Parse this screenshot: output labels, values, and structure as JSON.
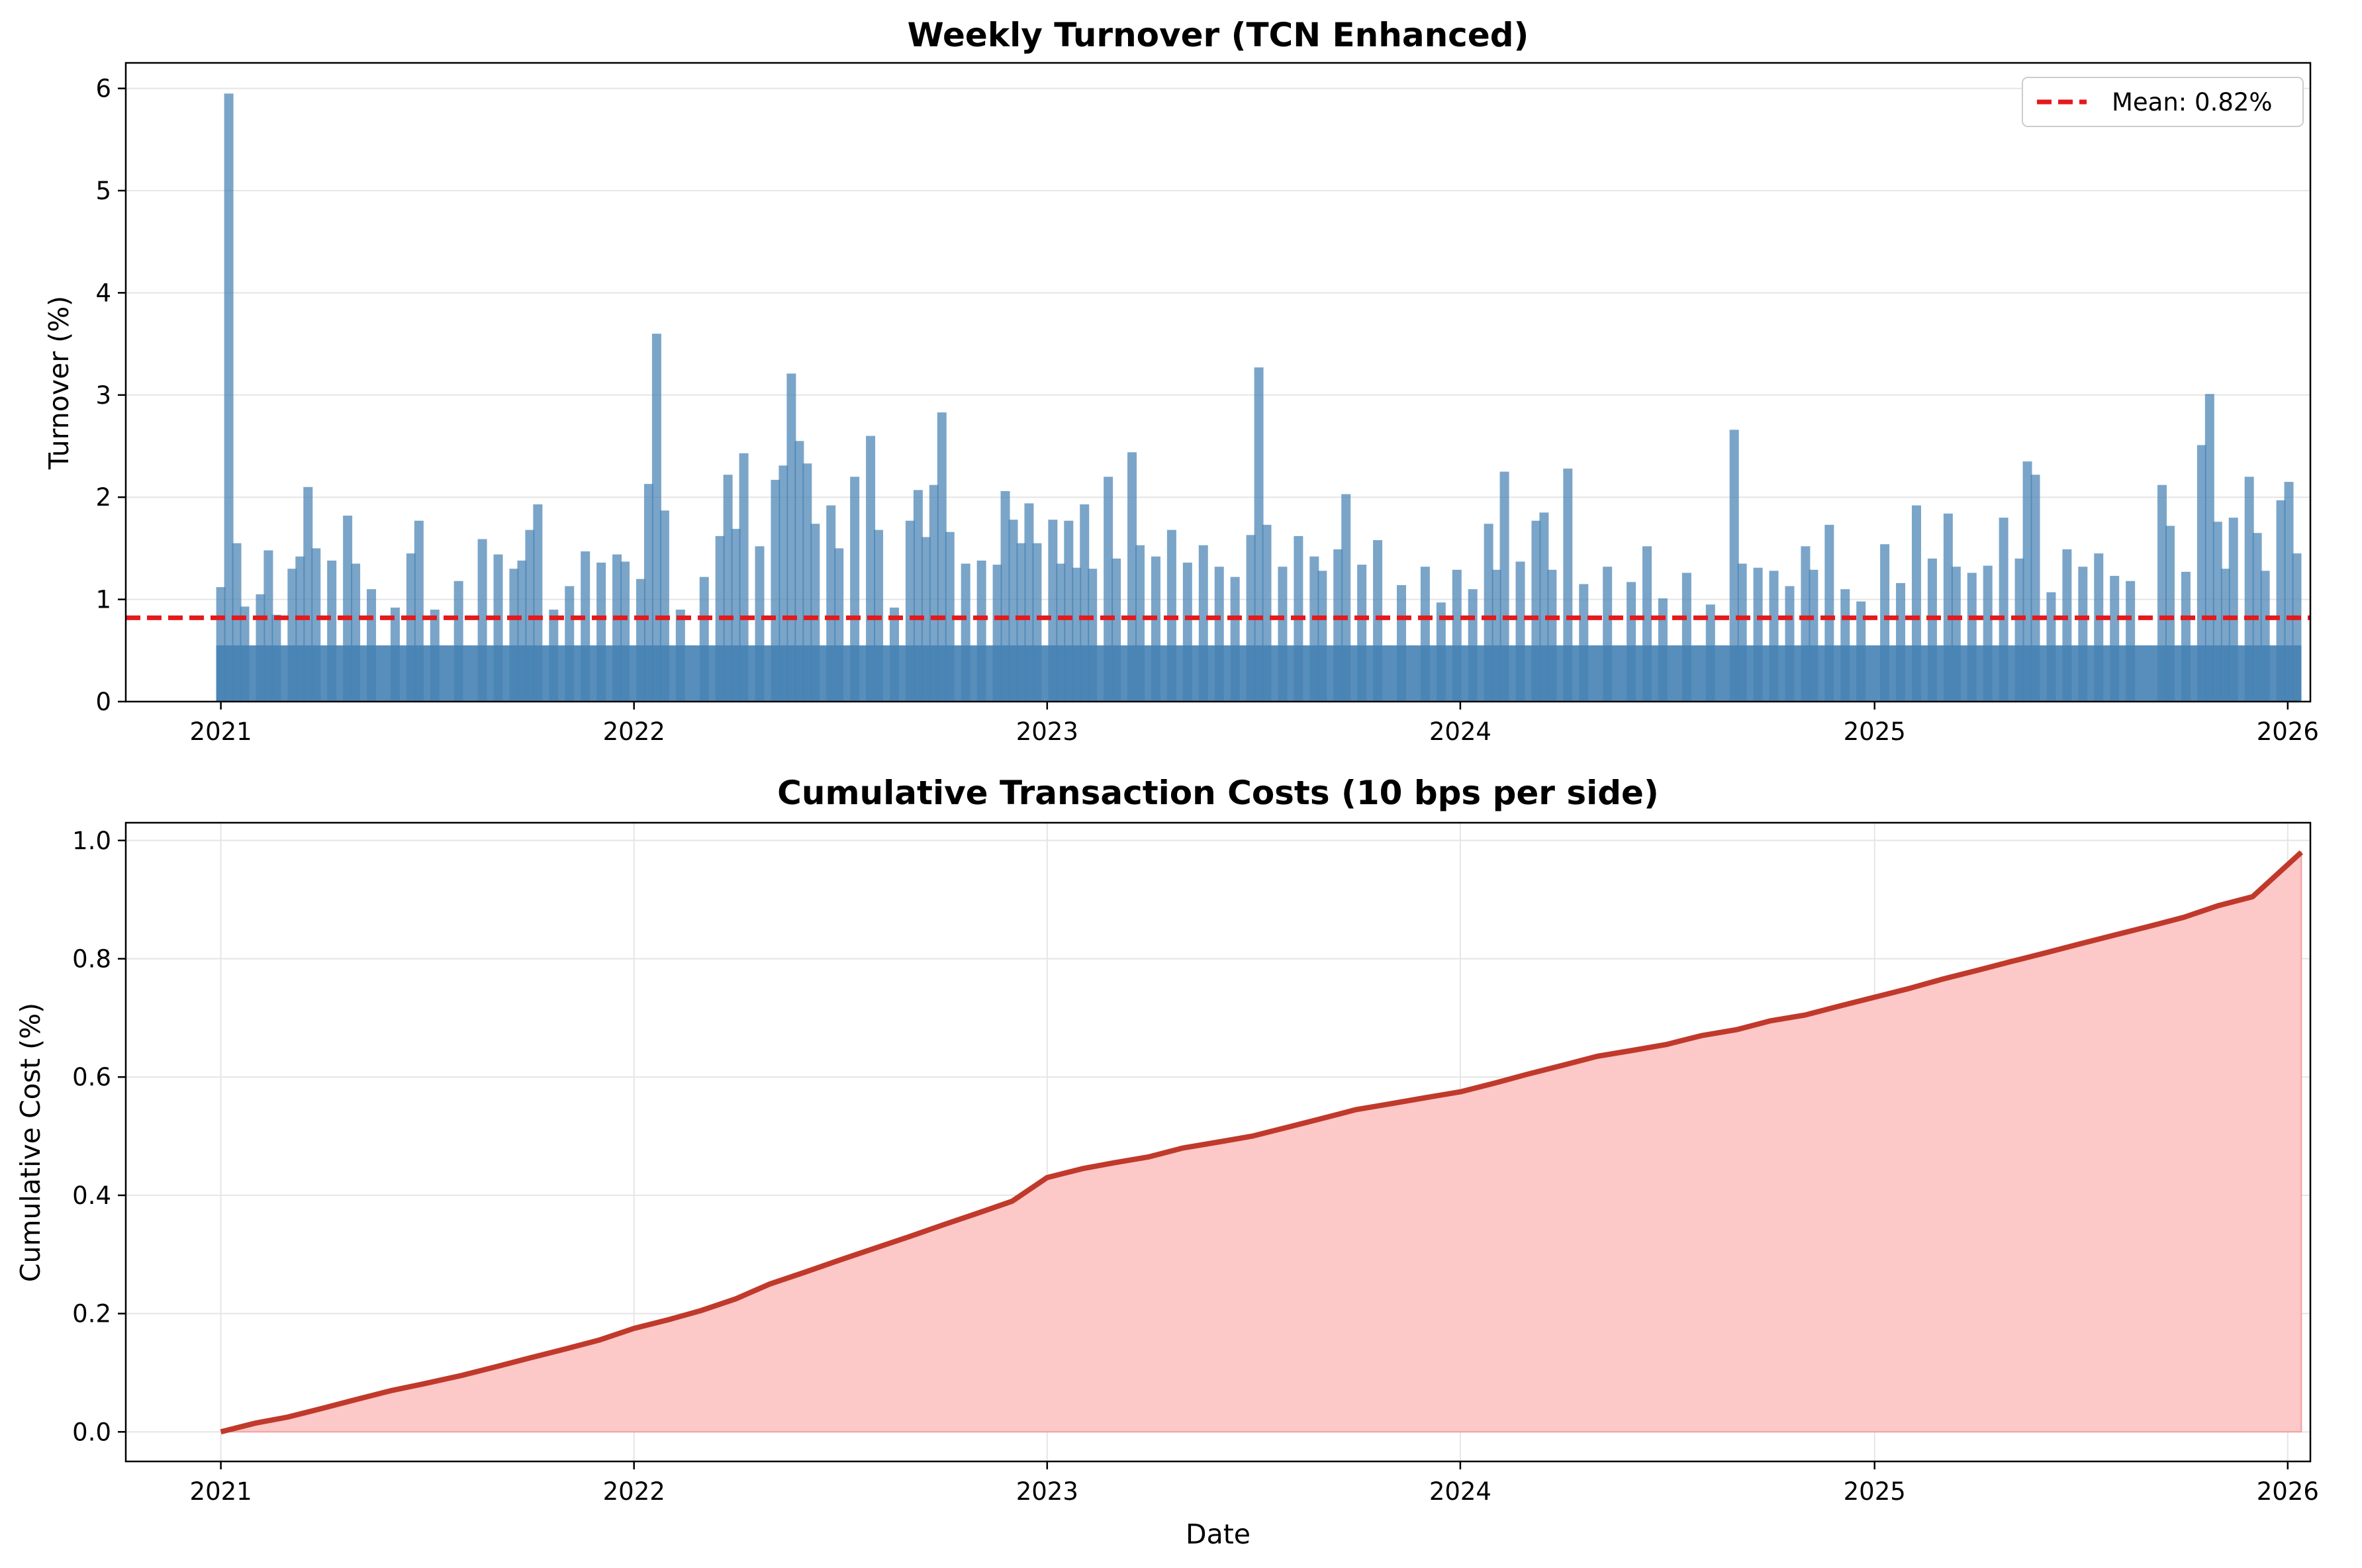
{
  "chart_data": [
    {
      "type": "bar",
      "title": "Weekly Turnover (TCN Enhanced)",
      "xlabel": "",
      "ylabel": "Turnover (%)",
      "xlim": [
        "2020-10-09",
        "2026-01-21"
      ],
      "ylim": [
        0,
        6.25
      ],
      "xticks": [
        "2021",
        "2022",
        "2023",
        "2024",
        "2025",
        "2026"
      ],
      "yticks": [
        "0",
        "1",
        "2",
        "3",
        "4",
        "5",
        "6"
      ],
      "grid": true,
      "legend": {
        "placement": "top-right",
        "entries": [
          "Mean: 0.82%"
        ]
      },
      "colors": {
        "bars": "#4682b4",
        "mean": "#e31a1c"
      },
      "mean": 0.82,
      "series": [
        {
          "values_description": "",
          "points": [
            [
              "2021-01-01",
              1.12
            ],
            [
              "2021-01-08",
              5.95
            ],
            [
              "2021-01-15",
              1.55
            ],
            [
              "2021-01-22",
              0.93
            ],
            [
              "2021-02-05",
              1.05
            ],
            [
              "2021-02-12",
              1.48
            ],
            [
              "2021-02-19",
              0.85
            ],
            [
              "2021-03-05",
              1.3
            ],
            [
              "2021-03-12",
              1.42
            ],
            [
              "2021-03-19",
              2.1
            ],
            [
              "2021-03-26",
              1.5
            ],
            [
              "2021-04-09",
              1.38
            ],
            [
              "2021-04-23",
              1.82
            ],
            [
              "2021-04-30",
              1.35
            ],
            [
              "2021-05-14",
              1.1
            ],
            [
              "2021-06-04",
              0.92
            ],
            [
              "2021-06-18",
              1.45
            ],
            [
              "2021-06-25",
              1.77
            ],
            [
              "2021-07-09",
              0.9
            ],
            [
              "2021-07-30",
              1.18
            ],
            [
              "2021-08-20",
              1.59
            ],
            [
              "2021-09-03",
              1.44
            ],
            [
              "2021-09-17",
              1.3
            ],
            [
              "2021-09-24",
              1.38
            ],
            [
              "2021-10-01",
              1.68
            ],
            [
              "2021-10-08",
              1.93
            ],
            [
              "2021-10-22",
              0.9
            ],
            [
              "2021-11-05",
              1.13
            ],
            [
              "2021-11-19",
              1.47
            ],
            [
              "2021-12-03",
              1.36
            ],
            [
              "2021-12-17",
              1.44
            ],
            [
              "2021-12-24",
              1.37
            ],
            [
              "2022-01-07",
              1.2
            ],
            [
              "2022-01-14",
              2.13
            ],
            [
              "2022-01-21",
              3.6
            ],
            [
              "2022-01-28",
              1.87
            ],
            [
              "2022-02-11",
              0.9
            ],
            [
              "2022-03-04",
              1.22
            ],
            [
              "2022-03-18",
              1.62
            ],
            [
              "2022-03-25",
              2.22
            ],
            [
              "2022-04-01",
              1.69
            ],
            [
              "2022-04-08",
              2.43
            ],
            [
              "2022-04-22",
              1.52
            ],
            [
              "2022-05-06",
              2.17
            ],
            [
              "2022-05-13",
              2.31
            ],
            [
              "2022-05-20",
              3.21
            ],
            [
              "2022-05-27",
              2.55
            ],
            [
              "2022-06-03",
              2.33
            ],
            [
              "2022-06-10",
              1.74
            ],
            [
              "2022-06-24",
              1.92
            ],
            [
              "2022-07-01",
              1.5
            ],
            [
              "2022-07-15",
              2.2
            ],
            [
              "2022-07-29",
              2.6
            ],
            [
              "2022-08-05",
              1.68
            ],
            [
              "2022-08-19",
              0.92
            ],
            [
              "2022-09-02",
              1.77
            ],
            [
              "2022-09-09",
              2.07
            ],
            [
              "2022-09-16",
              1.61
            ],
            [
              "2022-09-23",
              2.12
            ],
            [
              "2022-09-30",
              2.83
            ],
            [
              "2022-10-07",
              1.66
            ],
            [
              "2022-10-21",
              1.35
            ],
            [
              "2022-11-04",
              1.38
            ],
            [
              "2022-11-18",
              1.34
            ],
            [
              "2022-11-25",
              2.06
            ],
            [
              "2022-12-02",
              1.78
            ],
            [
              "2022-12-09",
              1.55
            ],
            [
              "2022-12-16",
              1.94
            ],
            [
              "2022-12-23",
              1.55
            ],
            [
              "2023-01-06",
              1.78
            ],
            [
              "2023-01-13",
              1.35
            ],
            [
              "2023-01-20",
              1.77
            ],
            [
              "2023-01-27",
              1.31
            ],
            [
              "2023-02-03",
              1.93
            ],
            [
              "2023-02-10",
              1.3
            ],
            [
              "2023-02-24",
              2.2
            ],
            [
              "2023-03-03",
              1.4
            ],
            [
              "2023-03-17",
              2.44
            ],
            [
              "2023-03-24",
              1.53
            ],
            [
              "2023-04-07",
              1.42
            ],
            [
              "2023-04-21",
              1.68
            ],
            [
              "2023-05-05",
              1.36
            ],
            [
              "2023-05-19",
              1.53
            ],
            [
              "2023-06-02",
              1.32
            ],
            [
              "2023-06-16",
              1.22
            ],
            [
              "2023-06-30",
              1.63
            ],
            [
              "2023-07-07",
              3.27
            ],
            [
              "2023-07-14",
              1.73
            ],
            [
              "2023-07-28",
              1.32
            ],
            [
              "2023-08-11",
              1.62
            ],
            [
              "2023-08-25",
              1.42
            ],
            [
              "2023-09-01",
              1.28
            ],
            [
              "2023-09-15",
              1.49
            ],
            [
              "2023-09-22",
              2.03
            ],
            [
              "2023-10-06",
              1.34
            ],
            [
              "2023-10-20",
              1.58
            ],
            [
              "2023-11-10",
              1.14
            ],
            [
              "2023-12-01",
              1.32
            ],
            [
              "2023-12-15",
              0.97
            ],
            [
              "2023-12-29",
              1.29
            ],
            [
              "2024-01-12",
              1.1
            ],
            [
              "2024-01-26",
              1.74
            ],
            [
              "2024-02-02",
              1.29
            ],
            [
              "2024-02-09",
              2.25
            ],
            [
              "2024-02-23",
              1.37
            ],
            [
              "2024-03-08",
              1.77
            ],
            [
              "2024-03-15",
              1.85
            ],
            [
              "2024-03-22",
              1.29
            ],
            [
              "2024-04-05",
              2.28
            ],
            [
              "2024-04-19",
              1.15
            ],
            [
              "2024-05-10",
              1.32
            ],
            [
              "2024-05-31",
              1.17
            ],
            [
              "2024-06-14",
              1.52
            ],
            [
              "2024-06-28",
              1.01
            ],
            [
              "2024-07-19",
              1.26
            ],
            [
              "2024-08-09",
              0.95
            ],
            [
              "2024-08-30",
              2.66
            ],
            [
              "2024-09-06",
              1.35
            ],
            [
              "2024-09-20",
              1.31
            ],
            [
              "2024-10-04",
              1.28
            ],
            [
              "2024-10-18",
              1.13
            ],
            [
              "2024-11-01",
              1.52
            ],
            [
              "2024-11-08",
              1.29
            ],
            [
              "2024-11-22",
              1.73
            ],
            [
              "2024-12-06",
              1.1
            ],
            [
              "2024-12-20",
              0.98
            ],
            [
              "2025-01-10",
              1.54
            ],
            [
              "2025-01-24",
              1.16
            ],
            [
              "2025-02-07",
              1.92
            ],
            [
              "2025-02-21",
              1.4
            ],
            [
              "2025-03-07",
              1.84
            ],
            [
              "2025-03-14",
              1.32
            ],
            [
              "2025-03-28",
              1.26
            ],
            [
              "2025-04-11",
              1.33
            ],
            [
              "2025-04-25",
              1.8
            ],
            [
              "2025-05-09",
              1.4
            ],
            [
              "2025-05-16",
              2.35
            ],
            [
              "2025-05-23",
              2.22
            ],
            [
              "2025-06-06",
              1.07
            ],
            [
              "2025-06-20",
              1.49
            ],
            [
              "2025-07-04",
              1.32
            ],
            [
              "2025-07-18",
              1.45
            ],
            [
              "2025-08-01",
              1.23
            ],
            [
              "2025-08-15",
              1.18
            ],
            [
              "2025-09-12",
              2.12
            ],
            [
              "2025-09-19",
              1.72
            ],
            [
              "2025-10-03",
              1.27
            ],
            [
              "2025-10-17",
              2.51
            ],
            [
              "2025-10-24",
              3.01
            ],
            [
              "2025-10-31",
              1.76
            ],
            [
              "2025-11-07",
              1.3
            ],
            [
              "2025-11-14",
              1.8
            ],
            [
              "2025-11-28",
              2.2
            ],
            [
              "2025-12-05",
              1.65
            ],
            [
              "2025-12-12",
              1.28
            ],
            [
              "2025-12-26",
              1.97
            ],
            [
              "2026-01-02",
              2.15
            ],
            [
              "2026-01-09",
              1.45
            ]
          ]
        }
      ]
    },
    {
      "type": "area",
      "title": "Cumulative Transaction Costs (10 bps per side)",
      "xlabel": "Date",
      "ylabel": "Cumulative Cost (%)",
      "xlim": [
        "2020-10-09",
        "2026-01-21"
      ],
      "ylim": [
        -0.05,
        1.03
      ],
      "xticks": [
        "2021",
        "2022",
        "2023",
        "2024",
        "2025",
        "2026"
      ],
      "yticks": [
        "0.0",
        "0.2",
        "0.4",
        "0.6",
        "0.8",
        "1.0"
      ],
      "grid": true,
      "colors": {
        "line": "#c0392b",
        "fill": "#fcc8c8"
      },
      "series": [
        {
          "points": [
            [
              "2021-01-01",
              0.0
            ],
            [
              "2021-02-01",
              0.015
            ],
            [
              "2021-03-01",
              0.025
            ],
            [
              "2021-04-01",
              0.04
            ],
            [
              "2021-05-01",
              0.055
            ],
            [
              "2021-06-01",
              0.07
            ],
            [
              "2021-07-01",
              0.082
            ],
            [
              "2021-08-01",
              0.095
            ],
            [
              "2021-09-01",
              0.11
            ],
            [
              "2021-10-01",
              0.125
            ],
            [
              "2021-11-01",
              0.14
            ],
            [
              "2021-12-01",
              0.155
            ],
            [
              "2022-01-01",
              0.175
            ],
            [
              "2022-02-01",
              0.19
            ],
            [
              "2022-03-01",
              0.205
            ],
            [
              "2022-04-01",
              0.225
            ],
            [
              "2022-05-01",
              0.25
            ],
            [
              "2022-06-01",
              0.27
            ],
            [
              "2022-07-01",
              0.29
            ],
            [
              "2022-08-01",
              0.31
            ],
            [
              "2022-09-01",
              0.33
            ],
            [
              "2022-10-01",
              0.35
            ],
            [
              "2022-11-01",
              0.37
            ],
            [
              "2022-12-01",
              0.39
            ],
            [
              "2023-01-01",
              0.43
            ],
            [
              "2023-02-01",
              0.445
            ],
            [
              "2023-03-01",
              0.455
            ],
            [
              "2023-04-01",
              0.465
            ],
            [
              "2023-05-01",
              0.48
            ],
            [
              "2023-06-01",
              0.49
            ],
            [
              "2023-07-01",
              0.5
            ],
            [
              "2023-08-01",
              0.515
            ],
            [
              "2023-09-01",
              0.53
            ],
            [
              "2023-10-01",
              0.545
            ],
            [
              "2023-11-01",
              0.555
            ],
            [
              "2023-12-01",
              0.565
            ],
            [
              "2024-01-01",
              0.575
            ],
            [
              "2024-02-01",
              0.59
            ],
            [
              "2024-03-01",
              0.605
            ],
            [
              "2024-04-01",
              0.62
            ],
            [
              "2024-05-01",
              0.635
            ],
            [
              "2024-06-01",
              0.645
            ],
            [
              "2024-07-01",
              0.655
            ],
            [
              "2024-08-01",
              0.67
            ],
            [
              "2024-09-01",
              0.68
            ],
            [
              "2024-10-01",
              0.695
            ],
            [
              "2024-11-01",
              0.705
            ],
            [
              "2024-12-01",
              0.72
            ],
            [
              "2025-01-01",
              0.735
            ],
            [
              "2025-02-01",
              0.75
            ],
            [
              "2025-03-01",
              0.765
            ],
            [
              "2025-04-01",
              0.78
            ],
            [
              "2025-05-01",
              0.795
            ],
            [
              "2025-06-01",
              0.81
            ],
            [
              "2025-07-01",
              0.825
            ],
            [
              "2025-08-01",
              0.84
            ],
            [
              "2025-09-01",
              0.855
            ],
            [
              "2025-10-01",
              0.87
            ],
            [
              "2025-11-01",
              0.89
            ],
            [
              "2025-12-01",
              0.905
            ],
            [
              "2026-01-13",
              0.98
            ]
          ]
        }
      ]
    }
  ]
}
